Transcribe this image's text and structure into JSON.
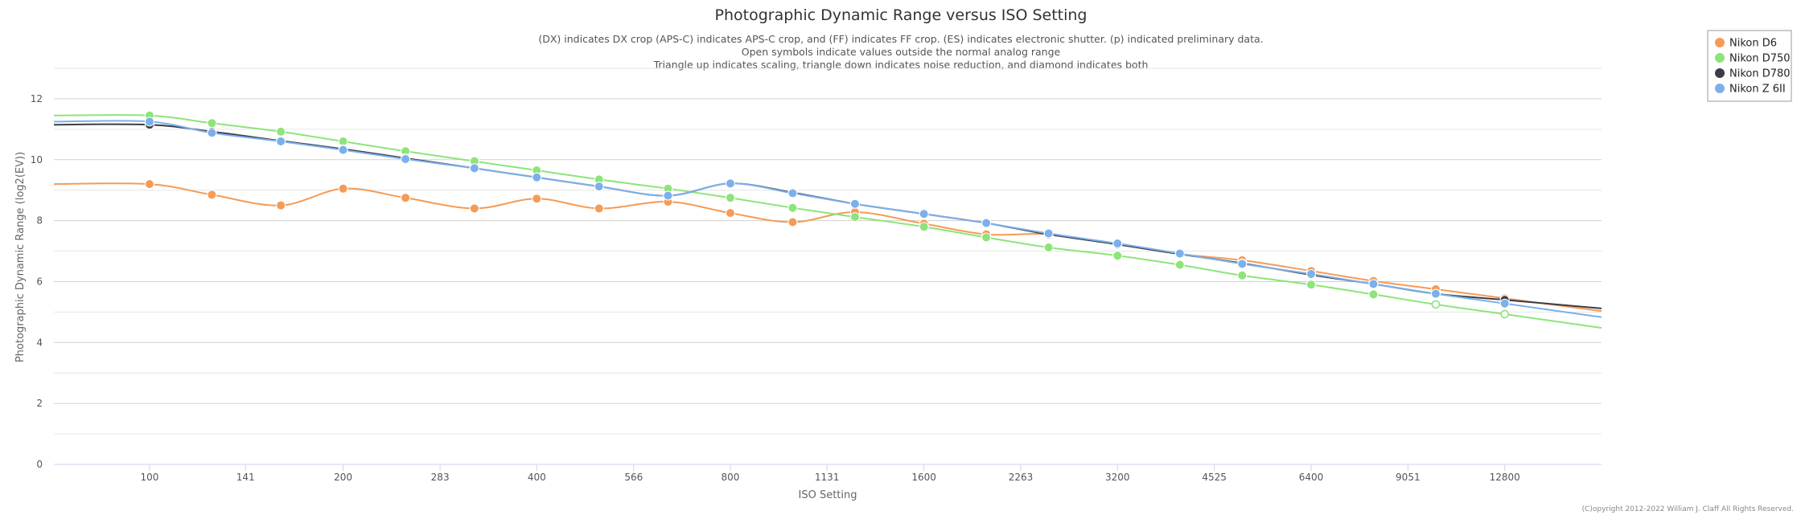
{
  "chart_data": {
    "type": "line",
    "title": "Photographic Dynamic Range versus ISO Setting",
    "subtitle": [
      "(DX) indicates DX crop (APS-C) indicates APS-C crop, and (FF) indicates FF crop. (ES) indicates electronic shutter. (p) indicated preliminary data.",
      "Open symbols indicate values outside the normal analog range",
      "Triangle up indicates scaling, triangle down indicates noise reduction, and diamond indicates both"
    ],
    "xlabel": "ISO Setting",
    "ylabel": "Photographic Dynamic Range (log2(EV))",
    "x_scale": "log2",
    "xlim": [
      71,
      18102
    ],
    "ylim": [
      0,
      13
    ],
    "x_ticks": [
      100,
      141,
      200,
      283,
      400,
      566,
      800,
      1131,
      1600,
      2263,
      3200,
      4525,
      6400,
      9051,
      12800
    ],
    "y_ticks": [
      0,
      2,
      4,
      6,
      8,
      10,
      12
    ],
    "grid": true,
    "legend_position": "top-right",
    "copyright": "(C)opyright 2012-2022 William J. Claff All Rights Reserved.",
    "series": [
      {
        "name": "Nikon D6",
        "color": "#f59b56",
        "x": [
          100,
          125,
          160,
          200,
          250,
          320,
          400,
          500,
          640,
          800,
          1000,
          1250,
          1600,
          2000,
          2500,
          3200,
          4000,
          5000,
          6400,
          8000,
          10000,
          12800
        ],
        "y": [
          9.2,
          8.85,
          8.5,
          9.05,
          8.75,
          8.4,
          8.72,
          8.4,
          8.62,
          8.25,
          7.95,
          8.28,
          7.9,
          7.55,
          7.55,
          7.22,
          6.9,
          6.7,
          6.35,
          6.02,
          5.75,
          5.45
        ],
        "open": [
          false,
          false,
          false,
          false,
          false,
          false,
          false,
          false,
          false,
          false,
          false,
          false,
          false,
          false,
          false,
          false,
          false,
          false,
          false,
          false,
          false,
          false
        ]
      },
      {
        "name": "Nikon D750",
        "color": "#8de47a",
        "x": [
          100,
          125,
          160,
          200,
          250,
          320,
          400,
          500,
          640,
          800,
          1000,
          1250,
          1600,
          2000,
          2500,
          3200,
          4000,
          5000,
          6400,
          8000,
          10000,
          12800
        ],
        "y": [
          11.45,
          11.2,
          10.92,
          10.6,
          10.28,
          9.95,
          9.65,
          9.35,
          9.05,
          8.75,
          8.42,
          8.12,
          7.8,
          7.45,
          7.12,
          6.85,
          6.55,
          6.2,
          5.9,
          5.58,
          5.25,
          4.93
        ],
        "open": [
          false,
          false,
          false,
          false,
          false,
          false,
          false,
          false,
          false,
          false,
          false,
          false,
          false,
          false,
          false,
          false,
          false,
          false,
          false,
          false,
          true,
          true
        ]
      },
      {
        "name": "Nikon D780",
        "color": "#3c3c46",
        "x": [
          100,
          125,
          160,
          200,
          250,
          320,
          400,
          500,
          640,
          800,
          1000,
          1250,
          1600,
          2000,
          2500,
          3200,
          4000,
          5000,
          6400,
          8000,
          10000,
          12800
        ],
        "y": [
          11.15,
          10.92,
          10.62,
          10.35,
          10.05,
          9.72,
          9.42,
          9.12,
          8.82,
          9.22,
          8.92,
          8.55,
          8.22,
          7.92,
          7.55,
          7.22,
          6.9,
          6.6,
          6.22,
          5.92,
          5.6,
          5.4
        ],
        "open": [
          false,
          false,
          false,
          false,
          false,
          false,
          false,
          false,
          false,
          false,
          false,
          false,
          false,
          false,
          false,
          false,
          false,
          false,
          false,
          false,
          false,
          false
        ]
      },
      {
        "name": "Nikon Z 6II",
        "color": "#7cb0ea",
        "x": [
          100,
          125,
          160,
          200,
          250,
          320,
          400,
          500,
          640,
          800,
          1000,
          1250,
          1600,
          2000,
          2500,
          3200,
          4000,
          5000,
          6400,
          8000,
          10000,
          12800
        ],
        "y": [
          11.25,
          10.88,
          10.6,
          10.32,
          10.02,
          9.72,
          9.42,
          9.12,
          8.82,
          9.22,
          8.9,
          8.55,
          8.22,
          7.92,
          7.58,
          7.25,
          6.92,
          6.58,
          6.25,
          5.92,
          5.6,
          5.28
        ],
        "open": [
          false,
          false,
          false,
          false,
          false,
          false,
          false,
          false,
          false,
          false,
          false,
          false,
          false,
          false,
          false,
          false,
          false,
          false,
          false,
          false,
          false,
          false
        ]
      }
    ]
  }
}
